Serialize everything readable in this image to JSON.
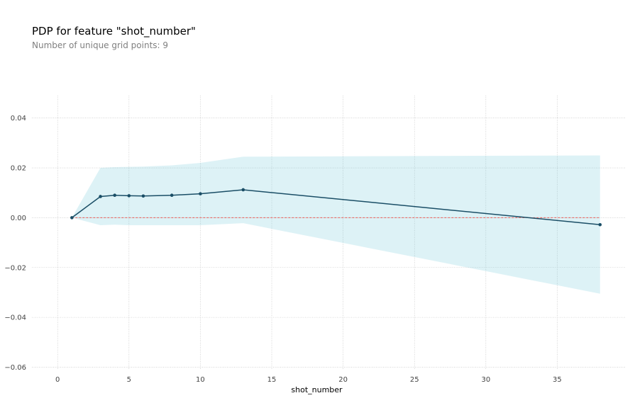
{
  "title": "PDP for feature \"shot_number\"",
  "subtitle": "Number of unique grid points: 9",
  "chart_data": {
    "type": "line",
    "xlabel": "shot_number",
    "ylabel": "",
    "xlim": [
      -1.8,
      39.8
    ],
    "ylim": [
      -0.061,
      0.049
    ],
    "xticks": [
      0,
      5,
      10,
      15,
      20,
      25,
      30,
      35
    ],
    "yticks": [
      -0.06,
      -0.04,
      -0.02,
      0.0,
      0.02,
      0.04
    ],
    "ytick_labels": [
      "−0.06",
      "−0.04",
      "−0.02",
      "0.00",
      "0.02",
      "0.04"
    ],
    "grid": true,
    "x": [
      1,
      3,
      4,
      5,
      6,
      8,
      10,
      13,
      38
    ],
    "series": [
      {
        "values": [
          0.0,
          0.0085,
          0.009,
          0.0088,
          0.0087,
          0.009,
          0.0096,
          0.0112,
          -0.0028
        ]
      }
    ],
    "band": {
      "upper": [
        0.0,
        0.02,
        0.0203,
        0.0204,
        0.0205,
        0.021,
        0.022,
        0.0245,
        0.025
      ],
      "lower": [
        0.0,
        -0.003,
        -0.0028,
        -0.003,
        -0.003,
        -0.003,
        -0.003,
        -0.0022,
        -0.0305
      ]
    },
    "reference_line": 0.0,
    "colors": {
      "line": "#1A4E66",
      "band": "#66C2D7",
      "reference": "#EC5B56",
      "grid": "#BDBDBD"
    }
  }
}
